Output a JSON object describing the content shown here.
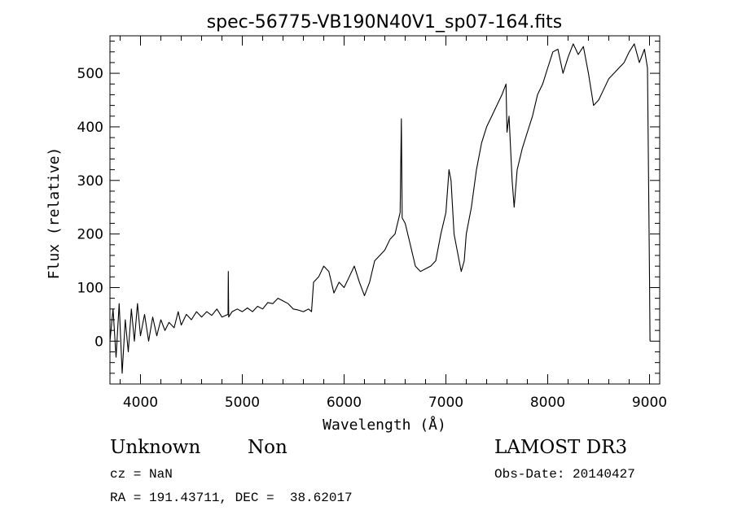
{
  "chart_data": {
    "type": "line",
    "title": "spec-56775-VB190N40V1_sp07-164.fits",
    "xlabel": "Wavelength (Å)",
    "ylabel": "Flux (relative)",
    "xlim": [
      3700,
      9100
    ],
    "ylim": [
      -80,
      570
    ],
    "xticks": [
      4000,
      5000,
      6000,
      7000,
      8000,
      9000
    ],
    "yticks": [
      0,
      100,
      200,
      300,
      400,
      500
    ],
    "series": [
      {
        "name": "flux",
        "points": [
          [
            3700,
            0
          ],
          [
            3730,
            60
          ],
          [
            3760,
            -30
          ],
          [
            3790,
            70
          ],
          [
            3820,
            -60
          ],
          [
            3850,
            40
          ],
          [
            3880,
            -20
          ],
          [
            3910,
            60
          ],
          [
            3940,
            0
          ],
          [
            3970,
            70
          ],
          [
            4000,
            10
          ],
          [
            4040,
            50
          ],
          [
            4080,
            0
          ],
          [
            4120,
            45
          ],
          [
            4160,
            10
          ],
          [
            4200,
            40
          ],
          [
            4240,
            20
          ],
          [
            4280,
            35
          ],
          [
            4330,
            25
          ],
          [
            4370,
            55
          ],
          [
            4400,
            30
          ],
          [
            4450,
            50
          ],
          [
            4500,
            40
          ],
          [
            4550,
            55
          ],
          [
            4600,
            45
          ],
          [
            4650,
            55
          ],
          [
            4700,
            48
          ],
          [
            4750,
            60
          ],
          [
            4800,
            45
          ],
          [
            4860,
            50
          ],
          [
            4862,
            130
          ],
          [
            4866,
            45
          ],
          [
            4900,
            55
          ],
          [
            4950,
            60
          ],
          [
            5000,
            55
          ],
          [
            5050,
            62
          ],
          [
            5100,
            55
          ],
          [
            5150,
            65
          ],
          [
            5200,
            60
          ],
          [
            5250,
            72
          ],
          [
            5300,
            70
          ],
          [
            5350,
            80
          ],
          [
            5400,
            75
          ],
          [
            5450,
            70
          ],
          [
            5500,
            60
          ],
          [
            5550,
            58
          ],
          [
            5600,
            55
          ],
          [
            5650,
            60
          ],
          [
            5680,
            55
          ],
          [
            5700,
            110
          ],
          [
            5750,
            120
          ],
          [
            5800,
            140
          ],
          [
            5850,
            130
          ],
          [
            5900,
            90
          ],
          [
            5950,
            110
          ],
          [
            6000,
            100
          ],
          [
            6050,
            120
          ],
          [
            6100,
            140
          ],
          [
            6150,
            110
          ],
          [
            6200,
            85
          ],
          [
            6250,
            110
          ],
          [
            6300,
            150
          ],
          [
            6350,
            160
          ],
          [
            6400,
            170
          ],
          [
            6450,
            190
          ],
          [
            6500,
            200
          ],
          [
            6550,
            240
          ],
          [
            6562,
            415
          ],
          [
            6570,
            230
          ],
          [
            6600,
            220
          ],
          [
            6650,
            180
          ],
          [
            6700,
            140
          ],
          [
            6750,
            130
          ],
          [
            6800,
            135
          ],
          [
            6850,
            140
          ],
          [
            6900,
            150
          ],
          [
            6950,
            200
          ],
          [
            7000,
            240
          ],
          [
            7030,
            320
          ],
          [
            7050,
            300
          ],
          [
            7080,
            200
          ],
          [
            7100,
            180
          ],
          [
            7150,
            130
          ],
          [
            7180,
            150
          ],
          [
            7200,
            200
          ],
          [
            7250,
            250
          ],
          [
            7300,
            320
          ],
          [
            7350,
            370
          ],
          [
            7400,
            400
          ],
          [
            7450,
            420
          ],
          [
            7500,
            440
          ],
          [
            7550,
            460
          ],
          [
            7590,
            480
          ],
          [
            7600,
            390
          ],
          [
            7620,
            420
          ],
          [
            7650,
            300
          ],
          [
            7670,
            250
          ],
          [
            7700,
            320
          ],
          [
            7750,
            360
          ],
          [
            7800,
            390
          ],
          [
            7850,
            420
          ],
          [
            7900,
            460
          ],
          [
            7950,
            480
          ],
          [
            8000,
            510
          ],
          [
            8050,
            540
          ],
          [
            8100,
            545
          ],
          [
            8150,
            500
          ],
          [
            8200,
            530
          ],
          [
            8250,
            555
          ],
          [
            8300,
            535
          ],
          [
            8350,
            550
          ],
          [
            8400,
            500
          ],
          [
            8450,
            440
          ],
          [
            8500,
            450
          ],
          [
            8550,
            470
          ],
          [
            8600,
            490
          ],
          [
            8650,
            500
          ],
          [
            8700,
            510
          ],
          [
            8750,
            520
          ],
          [
            8800,
            540
          ],
          [
            8850,
            555
          ],
          [
            8900,
            520
          ],
          [
            8950,
            545
          ],
          [
            8980,
            510
          ],
          [
            9000,
            120
          ],
          [
            9005,
            0
          ]
        ]
      }
    ]
  },
  "annotations": {
    "object_type": "Unknown",
    "subclass": "Non",
    "survey": "LAMOST DR3",
    "redshift": "cz = NaN",
    "obs_date": "Obs-Date: 20140427",
    "coords": "RA = 191.43711, DEC =  38.62017"
  }
}
